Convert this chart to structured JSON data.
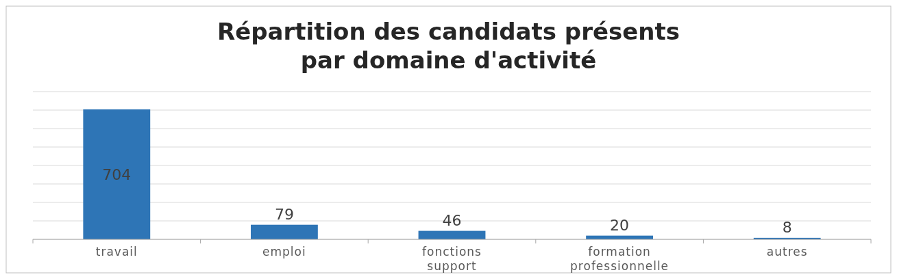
{
  "chart_data": {
    "type": "bar",
    "title": "Répartition des candidats présents\npar domaine d'activité",
    "categories": [
      "travail",
      "emploi",
      "fonctions support",
      "formation professionnelle",
      "autres"
    ],
    "values": [
      704,
      79,
      46,
      20,
      8
    ],
    "color": "#2e75b6",
    "data_labels": true,
    "grid": "y",
    "tick_labels": "x",
    "ylim": [
      0,
      800
    ],
    "yticks": [
      {
        "value": 0,
        "label": null
      },
      {
        "value": 100,
        "label": null
      },
      {
        "value": 200,
        "label": null
      },
      {
        "value": 300,
        "label": null
      },
      {
        "value": 400,
        "label": null
      },
      {
        "value": 500,
        "label": null
      },
      {
        "value": 600,
        "label": null
      },
      {
        "value": 700,
        "label": null
      },
      {
        "value": 800,
        "label": null
      }
    ]
  }
}
